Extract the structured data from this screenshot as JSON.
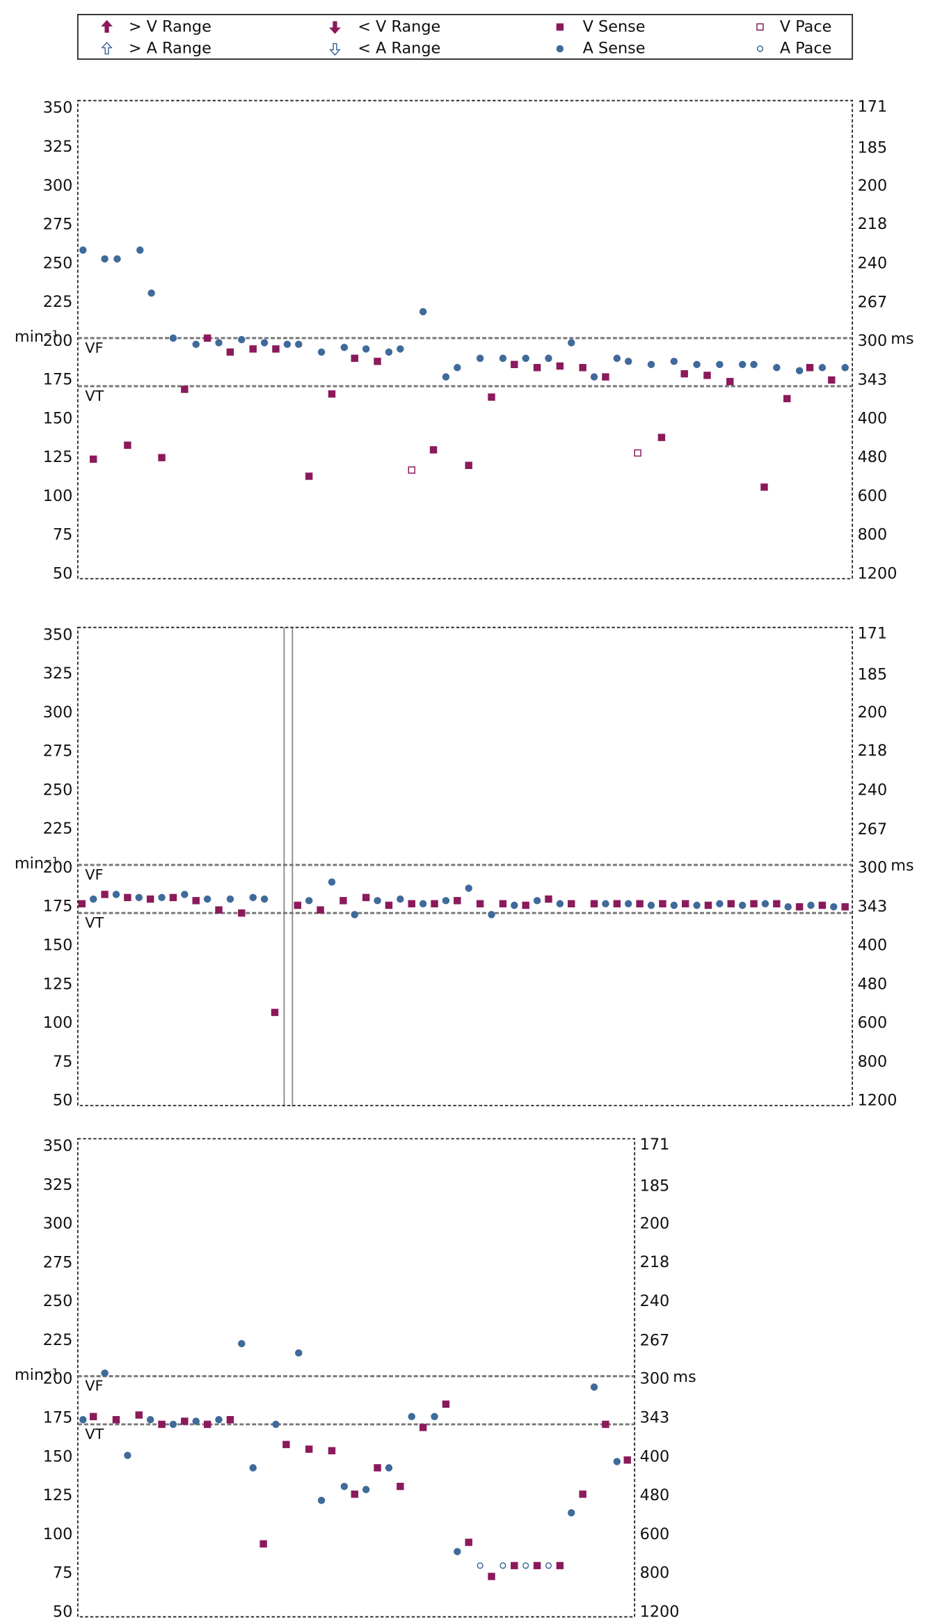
{
  "legend": [
    {
      "name": "> V Range",
      "color": "#8b1a5c",
      "marker": "arrow-up-filled"
    },
    {
      "name": "< V Range",
      "color": "#8b1a5c",
      "marker": "arrow-down-filled"
    },
    {
      "name": "V Sense",
      "color": "#8b1a5c",
      "marker": "square-filled"
    },
    {
      "name": "V Pace",
      "color": "#8b1a5c",
      "marker": "square-open"
    },
    {
      "name": "> A Range",
      "color": "#3f6a9a",
      "marker": "arrow-up-open"
    },
    {
      "name": "< A Range",
      "color": "#3f6a9a",
      "marker": "arrow-down-open"
    },
    {
      "name": "A Sense",
      "color": "#3f6a9a",
      "marker": "circle-filled"
    },
    {
      "name": "A Pace",
      "color": "#3f6a9a",
      "marker": "circle-open"
    }
  ],
  "chart_data": [
    {
      "type": "scatter",
      "ylabel": "min⁻¹",
      "y2label": "ms",
      "xlim": [
        0,
        747
      ],
      "ylim": [
        47,
        355
      ],
      "yticks": [
        50,
        75,
        100,
        125,
        150,
        175,
        200,
        225,
        250,
        275,
        300,
        325,
        350
      ],
      "y2scale": "reciprocal",
      "y2lim": [
        1277,
        169
      ],
      "y2ticks": [
        1200,
        800,
        600,
        480,
        400,
        343,
        300,
        267,
        240,
        218,
        200,
        185,
        171
      ],
      "reference_lines": [
        {
          "label": "VF",
          "value": 202
        },
        {
          "label": "VT",
          "value": 171
        }
      ],
      "series": [
        {
          "name": "A Sense",
          "color": "#3f6a9a",
          "marker": "circle-filled",
          "x": [
            5,
            26,
            38,
            60,
            71,
            92,
            114,
            136,
            158,
            180,
            202,
            213,
            235,
            257,
            278,
            300,
            311,
            333,
            355,
            366,
            388,
            410,
            432,
            454,
            476,
            498,
            520,
            531,
            553,
            575,
            597,
            619,
            641,
            652,
            674,
            696,
            718,
            740
          ],
          "values": [
            258.7,
            253,
            253,
            258.7,
            231,
            202,
            198,
            199,
            201,
            199,
            198,
            198,
            193,
            196,
            195,
            193,
            195,
            219,
            177,
            183,
            189,
            189,
            189,
            189,
            199,
            177,
            189,
            187,
            185,
            187,
            185,
            185,
            185,
            185,
            183,
            181,
            183,
            183
          ]
        },
        {
          "name": "V Sense",
          "color": "#8b1a5c",
          "marker": "square-filled",
          "x": [
            15,
            48,
            81,
            103,
            125,
            147,
            169,
            191,
            223,
            245,
            267,
            289,
            343,
            377,
            399,
            421,
            443,
            465,
            487,
            509,
            563,
            585,
            607,
            629,
            662,
            684,
            706,
            727
          ],
          "values": [
            124,
            133,
            125,
            169,
            202,
            193,
            195,
            195,
            113,
            166,
            189,
            187,
            130,
            120,
            164,
            185,
            183,
            184,
            183,
            177,
            138,
            179,
            178,
            174,
            106,
            163,
            183,
            175
          ]
        },
        {
          "name": "V Pace",
          "color": "#8b1a5c",
          "marker": "square-open",
          "x": [
            322,
            540
          ],
          "values": [
            117,
            128
          ]
        }
      ]
    },
    {
      "type": "scatter",
      "ylabel": "min⁻¹",
      "y2label": "ms",
      "xlim": [
        0,
        747
      ],
      "ylim": [
        47,
        355
      ],
      "yticks": [
        50,
        75,
        100,
        125,
        150,
        175,
        200,
        225,
        250,
        275,
        300,
        325,
        350
      ],
      "y2scale": "reciprocal",
      "y2lim": [
        1277,
        169
      ],
      "y2ticks": [
        1200,
        800,
        600,
        480,
        400,
        343,
        300,
        267,
        240,
        218,
        200,
        185,
        171
      ],
      "reference_lines": [
        {
          "label": "VF",
          "value": 202
        },
        {
          "label": "VT",
          "value": 171
        }
      ],
      "series": [
        {
          "name": "A Sense",
          "color": "#3f6a9a",
          "marker": "circle-filled",
          "x": [
            15,
            37,
            59,
            81,
            103,
            125,
            147,
            169,
            180,
            223,
            245,
            267,
            289,
            311,
            333,
            355,
            377,
            399,
            421,
            443,
            465,
            498,
            509,
            531,
            553,
            575,
            597,
            619,
            641,
            663,
            685,
            707,
            729
          ],
          "values": [
            180,
            183,
            181,
            181,
            183,
            180,
            180,
            181,
            180,
            179,
            191,
            170,
            179,
            180,
            177,
            179,
            187,
            170,
            176,
            179,
            177,
            177,
            177,
            177,
            176,
            176,
            176,
            177,
            176,
            177,
            175,
            176,
            175
          ]
        },
        {
          "name": "V Sense",
          "color": "#8b1a5c",
          "marker": "square-filled",
          "x": [
            4,
            26,
            48,
            70,
            92,
            114,
            136,
            158,
            190,
            212,
            234,
            256,
            278,
            300,
            322,
            344,
            366,
            388,
            410,
            432,
            454,
            476,
            498,
            520,
            542,
            564,
            586,
            608,
            630,
            652,
            674,
            696,
            718,
            740
          ],
          "values": [
            177,
            183,
            181,
            180,
            181,
            179,
            173,
            171,
            107,
            176,
            173,
            179,
            181,
            176,
            177,
            177,
            179,
            177,
            177,
            176,
            180,
            177,
            177,
            177,
            177,
            177,
            177,
            176,
            177,
            177,
            177,
            175,
            176,
            175
          ]
        }
      ]
    },
    {
      "type": "scatter",
      "ylabel": "min⁻¹",
      "y2label": "ms",
      "xlim": [
        0,
        537
      ],
      "ylim": [
        47,
        355
      ],
      "yticks": [
        50,
        75,
        100,
        125,
        150,
        175,
        200,
        225,
        250,
        275,
        300,
        325,
        350
      ],
      "y2scale": "reciprocal",
      "y2lim": [
        1277,
        169
      ],
      "y2ticks": [
        1200,
        800,
        600,
        480,
        400,
        343,
        300,
        267,
        240,
        218,
        200,
        185,
        171
      ],
      "reference_lines": [
        {
          "label": "VF",
          "value": 202
        },
        {
          "label": "VT",
          "value": 171
        }
      ],
      "series": [
        {
          "name": "A Sense",
          "color": "#3f6a9a",
          "marker": "circle-filled",
          "x": [
            5,
            26,
            48,
            70,
            92,
            114,
            136,
            158,
            169,
            191,
            213,
            235,
            257,
            278,
            300,
            322,
            344,
            366,
            476,
            498,
            520
          ],
          "values": [
            174,
            204,
            151,
            174,
            171,
            173,
            174,
            223,
            143,
            171,
            217,
            122,
            131,
            129,
            143,
            176,
            176,
            89,
            114,
            195,
            147
          ]
        },
        {
          "name": "V Sense",
          "color": "#8b1a5c",
          "marker": "square-filled",
          "x": [
            15,
            37,
            59,
            81,
            103,
            125,
            147,
            179,
            201,
            223,
            245,
            267,
            289,
            311,
            333,
            355,
            377,
            399,
            421,
            443,
            465,
            487,
            509,
            530
          ],
          "values": [
            176,
            174,
            177,
            171,
            173,
            171,
            174,
            94,
            158,
            155,
            154,
            126,
            143,
            131,
            169,
            184,
            95,
            73,
            80,
            80,
            80,
            126,
            171,
            148
          ]
        },
        {
          "name": "A Pace",
          "color": "#3f6a9a",
          "marker": "circle-open",
          "x": [
            388,
            410,
            432,
            454
          ],
          "values": [
            80,
            80,
            80,
            80
          ]
        }
      ]
    }
  ]
}
